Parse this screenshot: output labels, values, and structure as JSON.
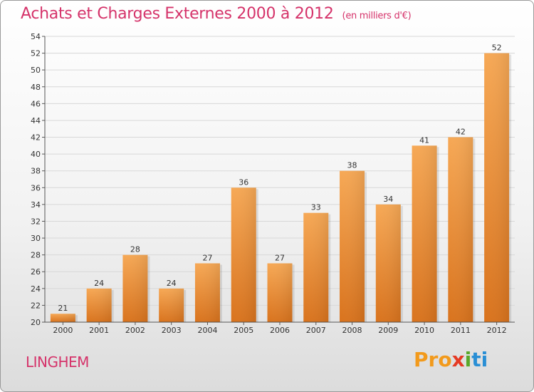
{
  "header": {
    "title": "Achats et Charges Externes 2000 à 2012",
    "subtitle": "(en milliers d'€)"
  },
  "footer": {
    "city": "LINGHEM",
    "logo_parts": [
      "Pro",
      "x",
      "i",
      "ti"
    ]
  },
  "colors": {
    "title": "#d5336a",
    "bar_light": "#f6a855",
    "bar_dark": "#d9731d",
    "grid": "#d8d8d8"
  },
  "chart_data": {
    "type": "bar",
    "categories": [
      "2000",
      "2001",
      "2002",
      "2003",
      "2004",
      "2005",
      "2006",
      "2007",
      "2008",
      "2009",
      "2010",
      "2011",
      "2012"
    ],
    "values": [
      21,
      24,
      28,
      24,
      27,
      36,
      27,
      33,
      38,
      34,
      41,
      42,
      52
    ],
    "title": "Achats et Charges Externes 2000 à 2012",
    "ylim": [
      20,
      54
    ],
    "yticks": [
      20,
      22,
      24,
      26,
      28,
      30,
      32,
      34,
      36,
      38,
      40,
      42,
      44,
      46,
      48,
      50,
      52,
      54
    ],
    "grid": true,
    "data_labels": true
  }
}
